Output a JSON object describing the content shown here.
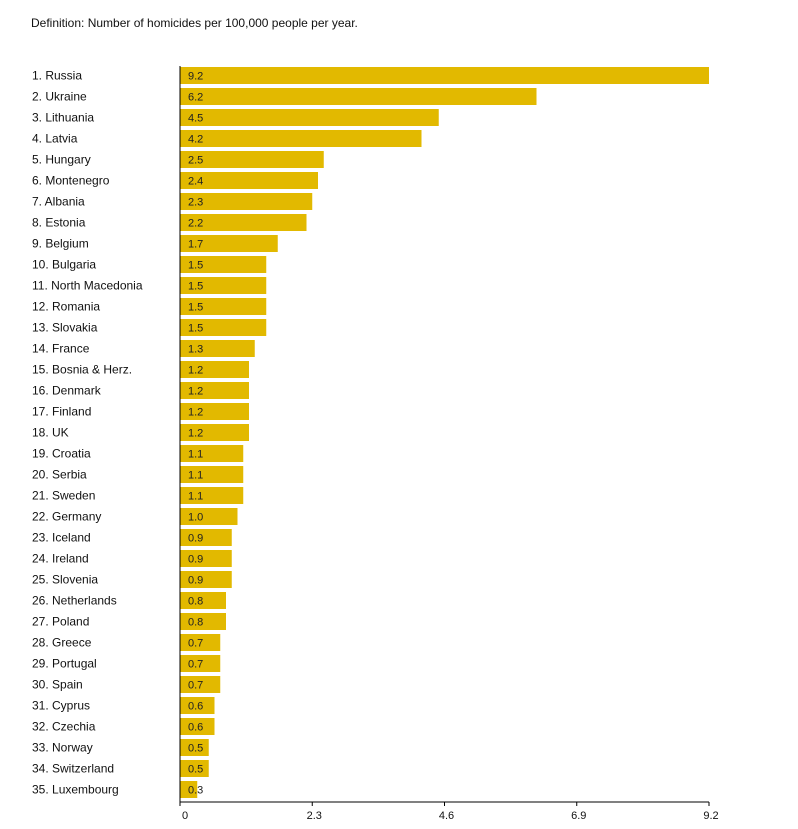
{
  "definition": "Definition: Number of homicides per 100,000 people per year.",
  "colors": {
    "bar": "#E2B900",
    "axis": "#000000",
    "text": "#111111"
  },
  "chart_data": {
    "type": "bar",
    "orientation": "horizontal",
    "title": "",
    "xlabel": "",
    "ylabel": "",
    "xlim": [
      0,
      9.2
    ],
    "xticks": [
      "0",
      "2.3",
      "4.6",
      "6.9",
      "9.2"
    ],
    "categories": [
      "1. Russia",
      "2. Ukraine",
      "3. Lithuania",
      "4. Latvia",
      "5. Hungary",
      "6. Montenegro",
      "7. Albania",
      "8. Estonia",
      "9. Belgium",
      "10. Bulgaria",
      "11. North Macedonia",
      "12. Romania",
      "13. Slovakia",
      "14. France",
      "15. Bosnia & Herz.",
      "16. Denmark",
      "17. Finland",
      "18. UK",
      "19. Croatia",
      "20. Serbia",
      "21. Sweden",
      "22. Germany",
      "23. Iceland",
      "24. Ireland",
      "25. Slovenia",
      "26. Netherlands",
      "27. Poland",
      "28. Greece",
      "29. Portugal",
      "30. Spain",
      "31. Cyprus",
      "32. Czechia",
      "33. Norway",
      "34. Switzerland",
      "35. Luxembourg"
    ],
    "values": [
      9.2,
      6.2,
      4.5,
      4.2,
      2.5,
      2.4,
      2.3,
      2.2,
      1.7,
      1.5,
      1.5,
      1.5,
      1.5,
      1.3,
      1.2,
      1.2,
      1.2,
      1.2,
      1.1,
      1.1,
      1.1,
      1.0,
      0.9,
      0.9,
      0.9,
      0.8,
      0.8,
      0.7,
      0.7,
      0.7,
      0.6,
      0.6,
      0.5,
      0.5,
      0.3
    ],
    "value_labels": [
      "9.2",
      "6.2",
      "4.5",
      "4.2",
      "2.5",
      "2.4",
      "2.3",
      "2.2",
      "1.7",
      "1.5",
      "1.5",
      "1.5",
      "1.5",
      "1.3",
      "1.2",
      "1.2",
      "1.2",
      "1.2",
      "1.1",
      "1.1",
      "1.1",
      "1.0",
      "0.9",
      "0.9",
      "0.9",
      "0.8",
      "0.8",
      "0.7",
      "0.7",
      "0.7",
      "0.6",
      "0.6",
      "0.5",
      "0.5",
      "0.3"
    ]
  }
}
